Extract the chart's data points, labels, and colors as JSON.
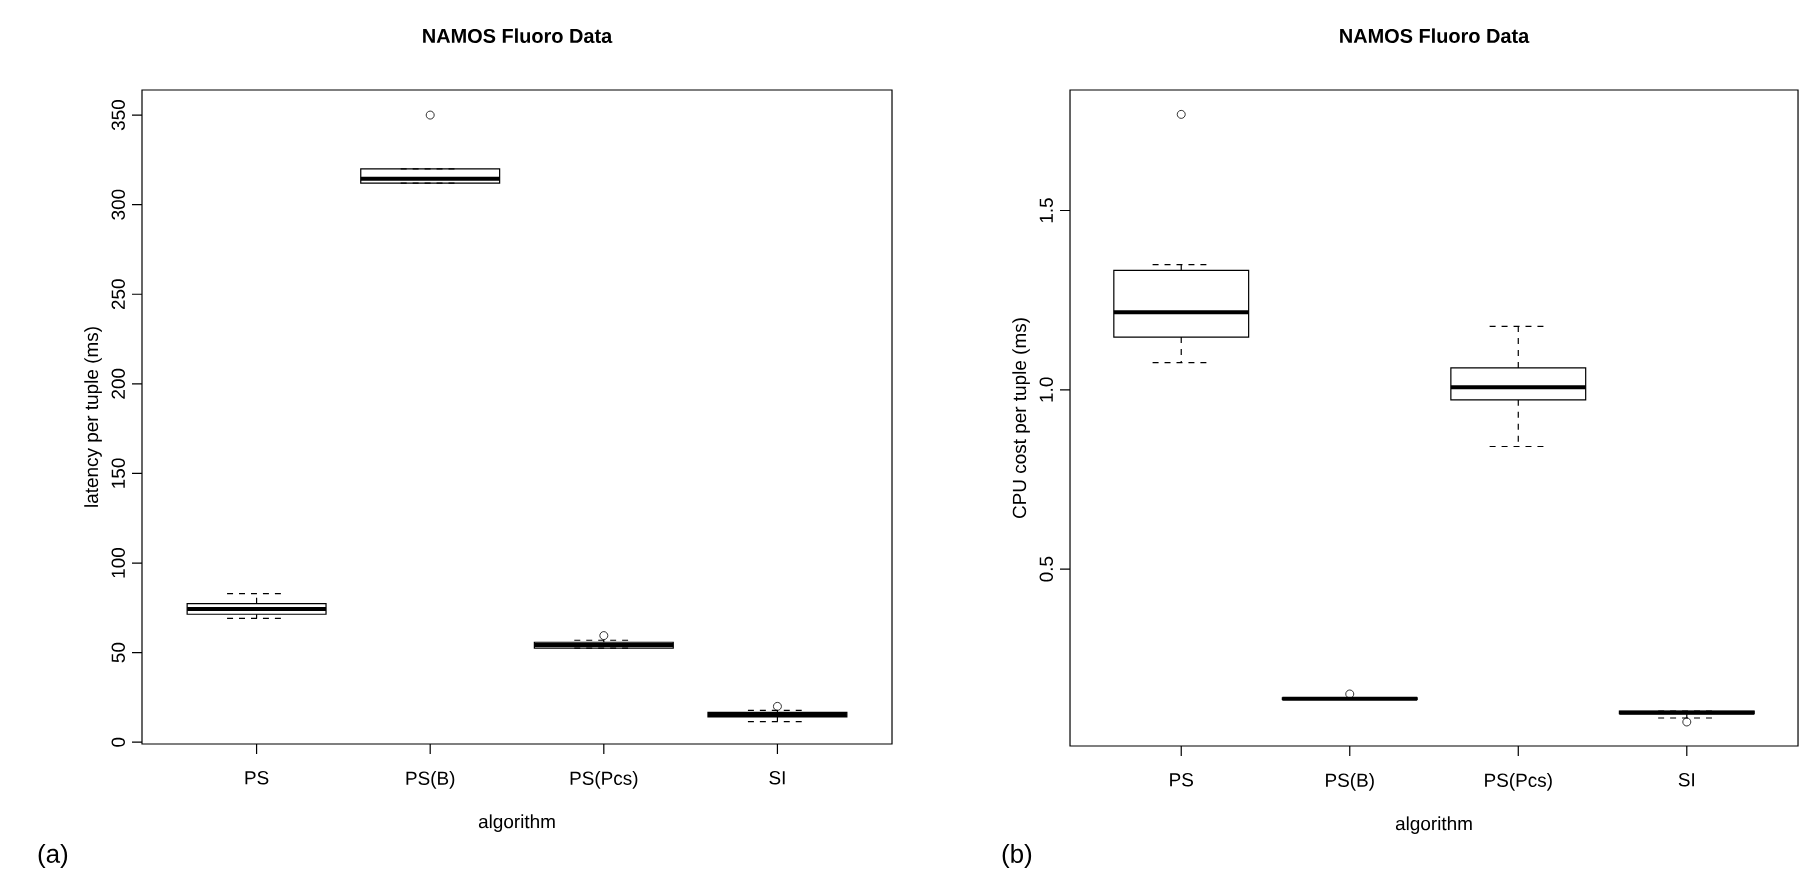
{
  "chart_data": [
    {
      "type": "box",
      "title": "NAMOS Fluoro Data",
      "xlabel": "algorithm",
      "ylabel": "latency per tuple (ms)",
      "annotations": [
        "(a)"
      ],
      "categories": [
        "PS",
        "PS(B)",
        "PS(Pcs)",
        "SI"
      ],
      "ylim": [
        -1,
        364
      ],
      "yticks": [
        0,
        50,
        100,
        150,
        200,
        250,
        300,
        350
      ],
      "marker": "circle",
      "line_style": "dashed",
      "series": [
        {
          "color": "#000000",
          "boxes": [
            {
              "low": 69.1,
              "q1": 71.4,
              "median": 74.3,
              "q3": 77.3,
              "high": 82.9
            },
            {
              "low": 312,
              "q1": 312,
              "median": 314.5,
              "q3": 320,
              "high": 320,
              "outliers": [
                350
              ]
            },
            {
              "low": 52.5,
              "q1": 52.5,
              "median": 54.3,
              "q3": 55.8,
              "high": 56.9,
              "outliers": [
                59.5
              ]
            },
            {
              "low": 11.5,
              "q1": 14.1,
              "median": 15.2,
              "q3": 16.7,
              "high": 17.8,
              "outliers": [
                20
              ]
            }
          ]
        }
      ]
    },
    {
      "type": "box",
      "title": "NAMOS Fluoro Data",
      "xlabel": "algorithm",
      "ylabel": "CPU cost per tuple (ms)",
      "annotations": [
        "(b)"
      ],
      "categories": [
        "PS",
        "PS(B)",
        "PS(Pcs)",
        "SI"
      ],
      "ylim": [
        0.007,
        1.836
      ],
      "yticks": [
        0.5,
        {
          "value": 1,
          "label": "1.0"
        },
        1.5
      ],
      "marker": "circle",
      "line_style": "dashed",
      "series": [
        {
          "color": "#000000",
          "boxes": [
            {
              "low": 1.076,
              "q1": 1.147,
              "median": 1.216,
              "q3": 1.333,
              "high": 1.349,
              "outliers": [
                1.768
              ]
            },
            {
              "low": 0.137,
              "q1": 0.137,
              "median": 0.139,
              "q3": 0.141,
              "high": 0.141,
              "outliers": [
                0.152
              ]
            },
            {
              "low": 0.842,
              "q1": 0.972,
              "median": 1.007,
              "q3": 1.061,
              "high": 1.177
            },
            {
              "low": 0.085,
              "q1": 0.097,
              "median": 0.1,
              "q3": 0.104,
              "high": 0.104,
              "outliers": [
                0.074
              ]
            }
          ]
        }
      ]
    }
  ]
}
